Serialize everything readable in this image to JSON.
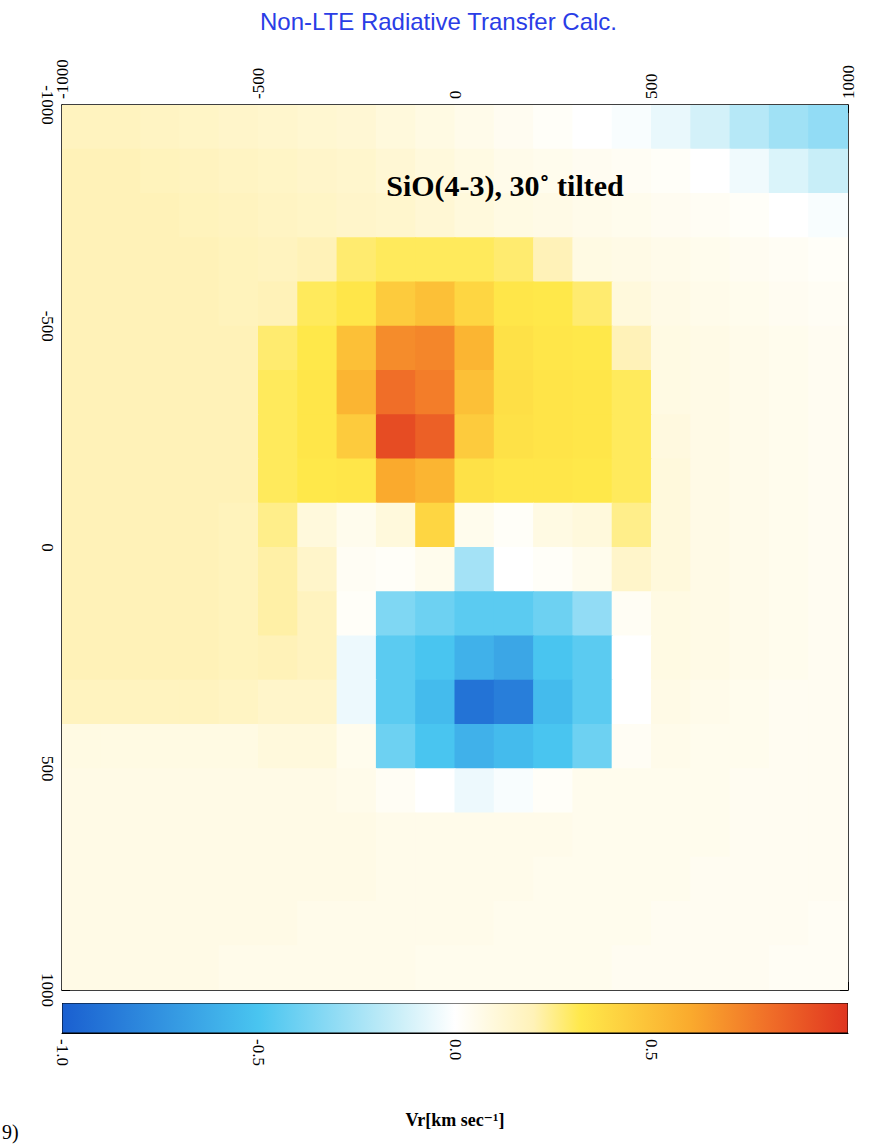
{
  "chart_data": {
    "type": "heatmap",
    "title": "Non-LTE Radiative Transfer Calc.",
    "annotation": "SiO(4-3), 30˚ tilted",
    "footnote": "9)",
    "xlim": [
      -1000,
      1000
    ],
    "xticks": [
      -1000,
      -500,
      0,
      500,
      1000
    ],
    "ylim": [
      -1000,
      1000
    ],
    "yticks": [
      -1000,
      -500,
      0,
      500,
      1000
    ],
    "cells": {
      "x": [
        -950,
        -850,
        -750,
        -650,
        -550,
        -450,
        -350,
        -250,
        -150,
        -50,
        50,
        150,
        250,
        350,
        450,
        550,
        650,
        750,
        850,
        950
      ],
      "y": [
        -950,
        -850,
        -750,
        -650,
        -550,
        -450,
        -350,
        -250,
        -150,
        -50,
        50,
        150,
        250,
        350,
        450,
        550,
        650,
        750,
        850,
        950
      ],
      "values": [
        [
          0.18,
          0.18,
          0.17,
          0.16,
          0.15,
          0.14,
          0.13,
          0.12,
          0.1,
          0.08,
          0.06,
          0.04,
          0.02,
          0,
          -0.02,
          -0.06,
          -0.12,
          -0.2,
          -0.26,
          -0.3
        ],
        [
          0.2,
          0.2,
          0.19,
          0.18,
          0.17,
          0.16,
          0.15,
          0.14,
          0.12,
          0.1,
          0.08,
          0.06,
          0.05,
          0.04,
          0.03,
          0.02,
          0,
          -0.04,
          -0.1,
          -0.15
        ],
        [
          0.2,
          0.2,
          0.2,
          0.19,
          0.18,
          0.17,
          0.16,
          0.15,
          0.14,
          0.12,
          0.1,
          0.08,
          0.07,
          0.06,
          0.05,
          0.04,
          0.03,
          0.02,
          0,
          -0.02
        ],
        [
          0.2,
          0.2,
          0.2,
          0.2,
          0.19,
          0.18,
          0.2,
          0.28,
          0.3,
          0.3,
          0.3,
          0.28,
          0.2,
          0.08,
          0.07,
          0.06,
          0.05,
          0.04,
          0.03,
          0.02
        ],
        [
          0.2,
          0.2,
          0.2,
          0.2,
          0.19,
          0.2,
          0.3,
          0.33,
          0.45,
          0.5,
          0.4,
          0.33,
          0.32,
          0.28,
          0.1,
          0.07,
          0.06,
          0.05,
          0.04,
          0.03
        ],
        [
          0.2,
          0.2,
          0.2,
          0.2,
          0.2,
          0.28,
          0.32,
          0.5,
          0.7,
          0.72,
          0.55,
          0.35,
          0.33,
          0.32,
          0.2,
          0.08,
          0.07,
          0.06,
          0.05,
          0.04
        ],
        [
          0.2,
          0.2,
          0.2,
          0.2,
          0.2,
          0.3,
          0.33,
          0.55,
          0.8,
          0.75,
          0.5,
          0.36,
          0.34,
          0.33,
          0.3,
          0.08,
          0.07,
          0.06,
          0.05,
          0.04
        ],
        [
          0.2,
          0.2,
          0.2,
          0.2,
          0.2,
          0.3,
          0.33,
          0.45,
          0.92,
          0.85,
          0.45,
          0.35,
          0.34,
          0.33,
          0.3,
          0.09,
          0.07,
          0.06,
          0.05,
          0.04
        ],
        [
          0.2,
          0.2,
          0.2,
          0.2,
          0.2,
          0.3,
          0.32,
          0.33,
          0.6,
          0.55,
          0.35,
          0.33,
          0.33,
          0.32,
          0.3,
          0.1,
          0.07,
          0.06,
          0.05,
          0.04
        ],
        [
          0.2,
          0.2,
          0.2,
          0.2,
          0.19,
          0.25,
          0.1,
          0.05,
          0.1,
          0.4,
          0.05,
          0.02,
          0.08,
          0.1,
          0.25,
          0.1,
          0.07,
          0.06,
          0.05,
          0.04
        ],
        [
          0.2,
          0.2,
          0.2,
          0.2,
          0.19,
          0.22,
          0.15,
          0.03,
          0.02,
          0.05,
          -0.25,
          0,
          0.02,
          0.05,
          0.15,
          0.1,
          0.07,
          0.06,
          0.05,
          0.04
        ],
        [
          0.2,
          0.2,
          0.2,
          0.2,
          0.19,
          0.22,
          0.18,
          0.02,
          -0.35,
          -0.4,
          -0.45,
          -0.45,
          -0.4,
          -0.3,
          0.03,
          0.08,
          0.07,
          0.06,
          0.05,
          0.04
        ],
        [
          0.2,
          0.2,
          0.2,
          0.2,
          0.19,
          0.2,
          0.18,
          -0.05,
          -0.45,
          -0.5,
          -0.6,
          -0.65,
          -0.5,
          -0.45,
          0,
          0.08,
          0.07,
          0.06,
          0.05,
          0.04
        ],
        [
          0.18,
          0.18,
          0.18,
          0.18,
          0.17,
          0.15,
          0.15,
          -0.05,
          -0.45,
          -0.55,
          -0.9,
          -0.85,
          -0.55,
          -0.45,
          0,
          0.07,
          0.06,
          0.05,
          0.04,
          0.04
        ],
        [
          0.08,
          0.08,
          0.08,
          0.08,
          0.08,
          0.1,
          0.1,
          0.05,
          -0.4,
          -0.5,
          -0.6,
          -0.55,
          -0.5,
          -0.4,
          0.03,
          0.06,
          0.05,
          0.05,
          0.04,
          0.04
        ],
        [
          0.07,
          0.07,
          0.07,
          0.07,
          0.07,
          0.07,
          0.07,
          0.06,
          0.03,
          0,
          -0.05,
          -0.02,
          0.02,
          0.05,
          0.05,
          0.05,
          0.05,
          0.04,
          0.04,
          0.04
        ],
        [
          0.07,
          0.07,
          0.07,
          0.07,
          0.07,
          0.07,
          0.07,
          0.07,
          0.06,
          0.06,
          0.06,
          0.06,
          0.06,
          0.05,
          0.05,
          0.05,
          0.05,
          0.04,
          0.04,
          0.04
        ],
        [
          0.07,
          0.07,
          0.07,
          0.07,
          0.07,
          0.07,
          0.07,
          0.07,
          0.06,
          0.06,
          0.06,
          0.06,
          0.05,
          0.05,
          0.05,
          0.05,
          0.04,
          0.04,
          0.04,
          0.04
        ],
        [
          0.07,
          0.07,
          0.07,
          0.07,
          0.07,
          0.07,
          0.06,
          0.06,
          0.06,
          0.06,
          0.06,
          0.05,
          0.05,
          0.05,
          0.05,
          0.04,
          0.04,
          0.04,
          0.04,
          0.03
        ],
        [
          0.07,
          0.07,
          0.07,
          0.07,
          0.06,
          0.06,
          0.06,
          0.06,
          0.06,
          0.05,
          0.05,
          0.05,
          0.05,
          0.05,
          0.04,
          0.04,
          0.04,
          0.04,
          0.03,
          0.03
        ]
      ]
    },
    "colorbar": {
      "range": [
        -1,
        1
      ],
      "ticks": [
        {
          "value": -1,
          "label": "-1.0"
        },
        {
          "value": -0.5,
          "label": "-0.5"
        },
        {
          "value": 0,
          "label": "0.0"
        },
        {
          "value": 0.5,
          "label": "0.5"
        }
      ],
      "label": "Vr[km sec⁻¹]"
    }
  }
}
